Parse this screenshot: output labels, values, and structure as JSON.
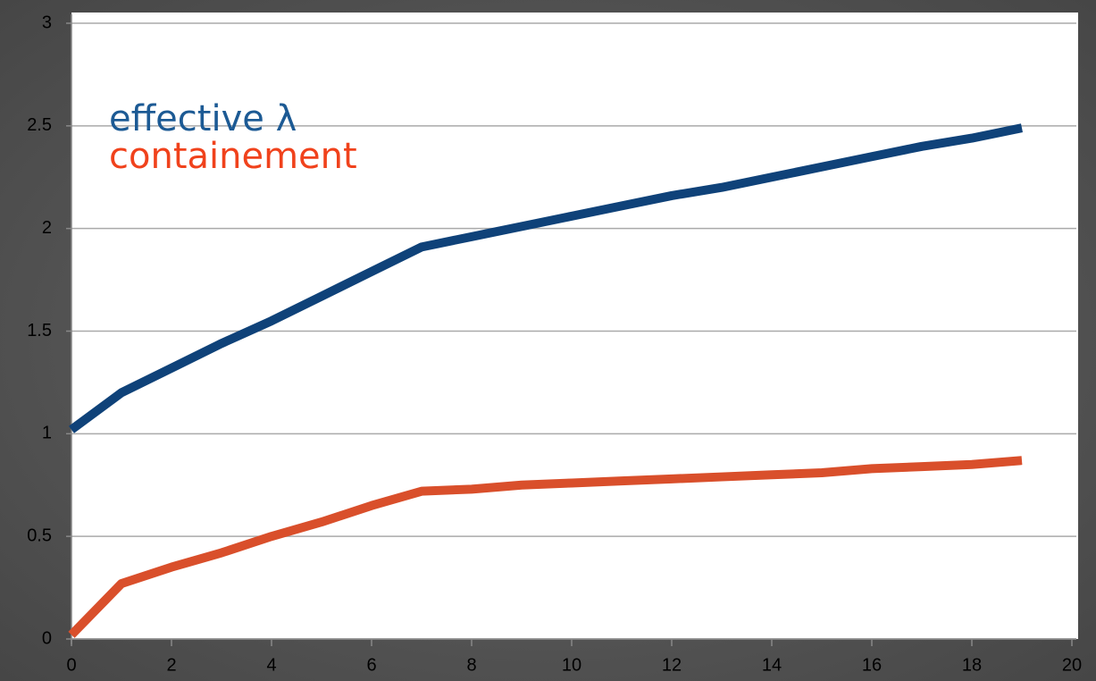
{
  "chart_data": {
    "type": "line",
    "x": [
      0,
      1,
      2,
      3,
      4,
      5,
      6,
      7,
      8,
      9,
      10,
      11,
      12,
      13,
      14,
      15,
      16,
      17,
      18,
      19
    ],
    "series": [
      {
        "name": "effective λ",
        "color": "#0f4279",
        "values": [
          1.02,
          1.2,
          1.32,
          1.44,
          1.55,
          1.67,
          1.79,
          1.91,
          1.96,
          2.01,
          2.06,
          2.11,
          2.16,
          2.2,
          2.25,
          2.3,
          2.35,
          2.4,
          2.44,
          2.49
        ]
      },
      {
        "name": "containement",
        "color": "#d94f2b",
        "values": [
          0.02,
          0.27,
          0.35,
          0.42,
          0.5,
          0.57,
          0.65,
          0.72,
          0.73,
          0.75,
          0.76,
          0.77,
          0.78,
          0.79,
          0.8,
          0.81,
          0.83,
          0.84,
          0.85,
          0.87
        ]
      }
    ],
    "legend_colors": [
      "#1c5a94",
      "#f0421c"
    ],
    "xlim": [
      0,
      20
    ],
    "xticks": [
      0,
      2,
      4,
      6,
      8,
      10,
      12,
      14,
      16,
      18,
      20
    ],
    "ylim": [
      0,
      3
    ],
    "yticks": [
      0,
      0.5,
      1,
      1.5,
      2,
      2.5,
      3
    ],
    "grid": true
  }
}
